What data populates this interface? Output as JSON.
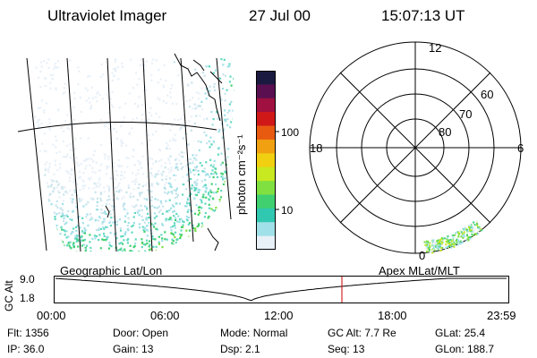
{
  "header": {
    "title": "Ultraviolet Imager",
    "date": "27 Jul 00",
    "time": "15:07:13 UT"
  },
  "colorbar": {
    "unit_label": "photon cm⁻²s⁻¹",
    "ticks": [
      "100",
      "10"
    ],
    "colors_top_to_bottom": [
      "#1a1a40",
      "#5a1050",
      "#a01040",
      "#d01818",
      "#e85a10",
      "#f0a010",
      "#f0d010",
      "#c8e820",
      "#80e040",
      "#40d070",
      "#30c8b0",
      "#a0e0e8",
      "#e8f0f8"
    ]
  },
  "polar_plot": {
    "mlt_labels": [
      "12",
      "18",
      "6",
      "0"
    ],
    "lat_labels": [
      "60",
      "70",
      "80"
    ]
  },
  "timeline": {
    "left_label": "Geographic Lat/Lon",
    "right_label": "Apex MLat/MLT",
    "y_axis_label": "GC Alt",
    "y_ticks": [
      "9.0",
      "1.8"
    ],
    "time_ticks": [
      "00:00",
      "06:00",
      "12:00",
      "18:00",
      "23:59"
    ],
    "marker_color": "#cc0000"
  },
  "info": {
    "row1": [
      {
        "label": "Flt:",
        "value": "1356"
      },
      {
        "label": "Door:",
        "value": "Open"
      },
      {
        "label": "Mode:",
        "value": "Normal"
      },
      {
        "label": "GC Alt:",
        "value": "7.7 Re"
      },
      {
        "label": "GLat:",
        "value": "25.4"
      }
    ],
    "row2": [
      {
        "label": "IP:",
        "value": "36.0"
      },
      {
        "label": "Gain:",
        "value": "13"
      },
      {
        "label": "Dsp:",
        "value": "2.1"
      },
      {
        "label": "Seq:",
        "value": "13"
      },
      {
        "label": "GLon:",
        "value": "188.7"
      }
    ]
  }
}
